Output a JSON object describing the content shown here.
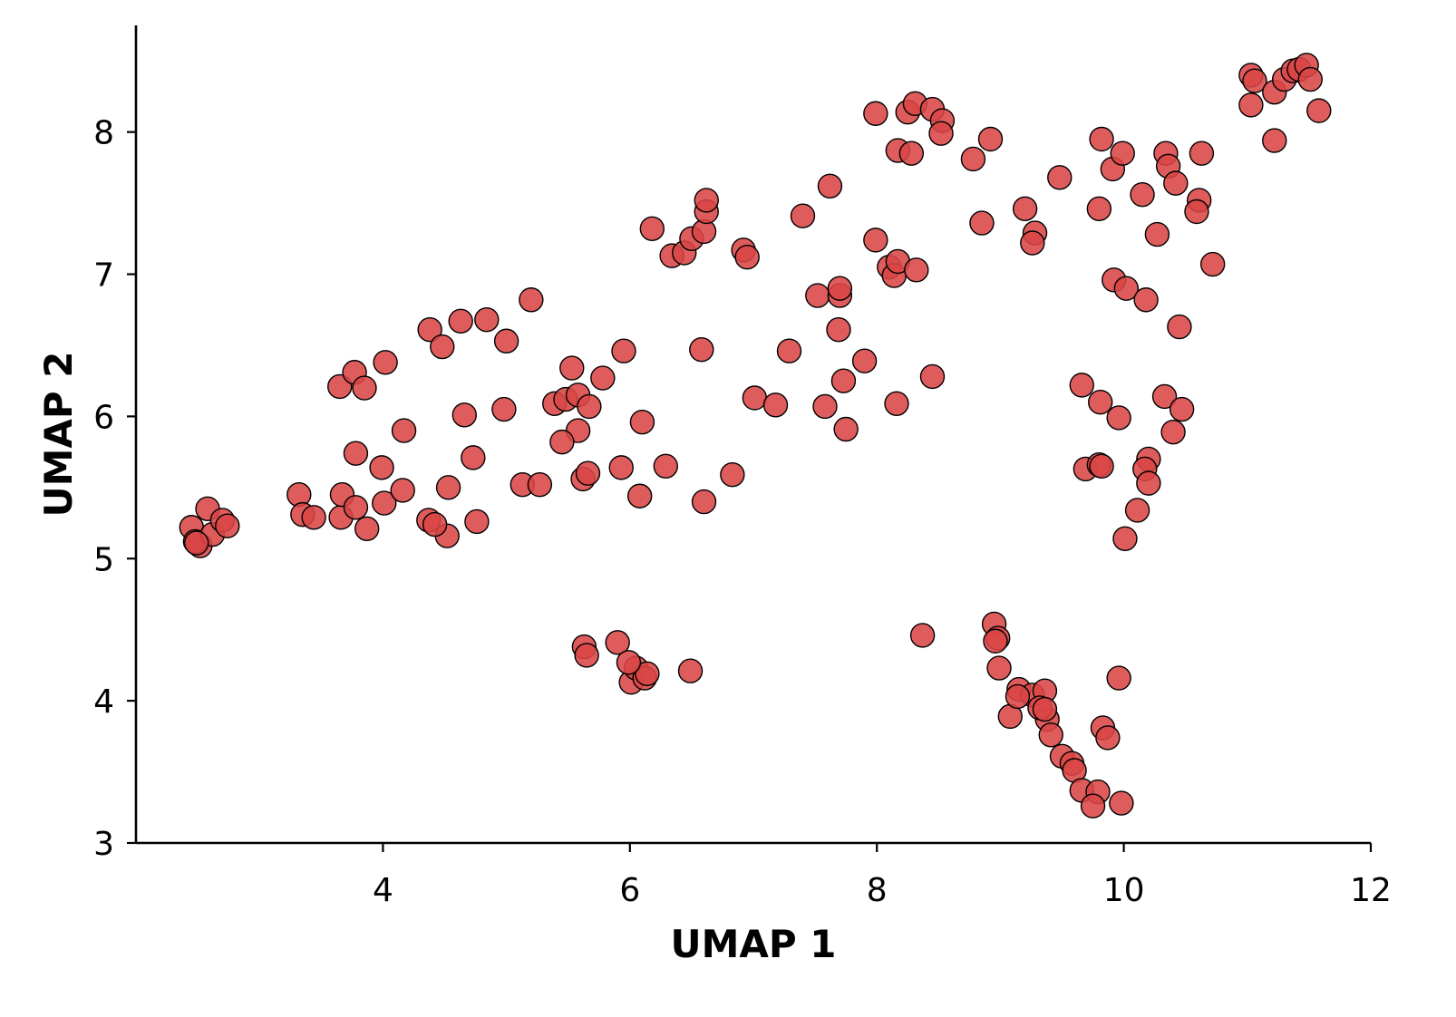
{
  "chart_data": {
    "type": "scatter",
    "title": "",
    "xlabel": "UMAP 1",
    "ylabel": "UMAP 2",
    "xlim": [
      2.0,
      12.0
    ],
    "ylim": [
      3.0,
      8.75
    ],
    "xticks": [
      "4",
      "6",
      "8",
      "10",
      "12"
    ],
    "yticks": [
      "3",
      "4",
      "5",
      "6",
      "7",
      "8"
    ],
    "xtick_values": [
      4,
      6,
      8,
      10,
      12
    ],
    "ytick_values": [
      3,
      4,
      5,
      6,
      7,
      8
    ],
    "grid": false,
    "legend": "none",
    "point_color": "#d94545",
    "edge_color": "#000000",
    "x": [
      2.45,
      2.52,
      2.48,
      2.62,
      2.58,
      2.7,
      2.74,
      2.49,
      3.32,
      3.35,
      3.44,
      3.66,
      3.67,
      3.78,
      3.87,
      3.99,
      4.01,
      3.78,
      4.16,
      4.17,
      3.65,
      3.77,
      3.85,
      4.02,
      4.38,
      4.48,
      4.63,
      4.84,
      5.0,
      5.2,
      4.66,
      4.98,
      4.73,
      4.53,
      4.76,
      4.52,
      4.37,
      4.42,
      5.13,
      5.27,
      5.39,
      5.48,
      5.53,
      5.58,
      5.67,
      5.78,
      5.95,
      5.58,
      5.45,
      5.62,
      5.66,
      5.93,
      6.1,
      6.08,
      6.29,
      6.6,
      6.83,
      5.63,
      5.65,
      5.9,
      6.01,
      6.05,
      6.12,
      6.14,
      5.99,
      6.49,
      6.18,
      6.34,
      6.44,
      6.5,
      6.6,
      6.62,
      6.62,
      6.92,
      6.95,
      6.58,
      7.01,
      7.18,
      7.29,
      7.4,
      7.52,
      7.62,
      7.7,
      7.7,
      7.69,
      7.9,
      7.58,
      7.73,
      7.75,
      7.99,
      8.25,
      8.31,
      8.45,
      8.53,
      8.52,
      8.17,
      8.28,
      7.99,
      8.1,
      8.14,
      8.17,
      8.32,
      8.16,
      8.45,
      8.78,
      8.92,
      8.85,
      9.2,
      9.28,
      9.26,
      9.48,
      8.37,
      8.95,
      8.98,
      8.96,
      8.99,
      9.15,
      9.26,
      9.36,
      9.08,
      9.14,
      9.38,
      9.32,
      9.36,
      9.41,
      9.5,
      9.58,
      9.6,
      9.66,
      9.79,
      9.75,
      9.83,
      9.87,
      9.98,
      9.96,
      9.82,
      9.91,
      9.99,
      9.8,
      10.15,
      10.34,
      10.36,
      10.42,
      10.63,
      10.61,
      10.59,
      10.27,
      10.72,
      9.92,
      10.02,
      10.18,
      10.45,
      9.66,
      9.81,
      9.96,
      10.33,
      10.47,
      10.4,
      9.69,
      9.8,
      9.82,
      10.2,
      10.17,
      10.2,
      10.11,
      10.01,
      11.03,
      11.06,
      11.22,
      11.3,
      11.37,
      11.42,
      11.48,
      11.51,
      11.03,
      11.22,
      11.58
    ],
    "y": [
      5.22,
      5.09,
      5.12,
      5.17,
      5.35,
      5.27,
      5.23,
      5.11,
      5.45,
      5.31,
      5.29,
      5.29,
      5.45,
      5.36,
      5.21,
      5.64,
      5.39,
      5.74,
      5.48,
      5.9,
      6.21,
      6.31,
      6.2,
      6.38,
      6.61,
      6.49,
      6.67,
      6.68,
      6.53,
      6.82,
      6.01,
      6.05,
      5.71,
      5.5,
      5.26,
      5.16,
      5.27,
      5.24,
      5.52,
      5.52,
      6.09,
      6.12,
      6.34,
      6.15,
      6.07,
      6.27,
      6.46,
      5.9,
      5.82,
      5.56,
      5.6,
      5.64,
      5.96,
      5.44,
      5.65,
      5.4,
      5.59,
      4.38,
      4.32,
      4.41,
      4.13,
      4.23,
      4.16,
      4.19,
      4.27,
      4.21,
      7.32,
      7.13,
      7.15,
      7.25,
      7.3,
      7.44,
      7.52,
      7.17,
      7.12,
      6.47,
      6.13,
      6.08,
      6.46,
      7.41,
      6.85,
      7.62,
      6.85,
      6.9,
      6.61,
      6.39,
      6.07,
      6.25,
      5.91,
      8.13,
      8.14,
      8.2,
      8.16,
      8.08,
      7.99,
      7.87,
      7.85,
      7.24,
      7.05,
      6.99,
      7.09,
      7.03,
      6.09,
      6.28,
      7.81,
      7.95,
      7.36,
      7.46,
      7.29,
      7.22,
      7.68,
      4.46,
      4.54,
      4.44,
      4.42,
      4.23,
      4.08,
      4.04,
      4.07,
      3.89,
      4.03,
      3.87,
      3.95,
      3.94,
      3.76,
      3.61,
      3.56,
      3.51,
      3.37,
      3.36,
      3.26,
      3.81,
      3.74,
      3.28,
      4.16,
      7.95,
      7.74,
      7.85,
      7.46,
      7.56,
      7.85,
      7.76,
      7.64,
      7.85,
      7.52,
      7.44,
      7.28,
      7.07,
      6.96,
      6.9,
      6.82,
      6.63,
      6.22,
      6.1,
      5.99,
      6.14,
      6.05,
      5.89,
      5.63,
      5.66,
      5.65,
      5.7,
      5.63,
      5.53,
      5.34,
      5.14,
      8.4,
      8.36,
      8.28,
      8.37,
      8.43,
      8.44,
      8.47,
      8.37,
      8.19,
      7.94,
      8.15
    ]
  }
}
